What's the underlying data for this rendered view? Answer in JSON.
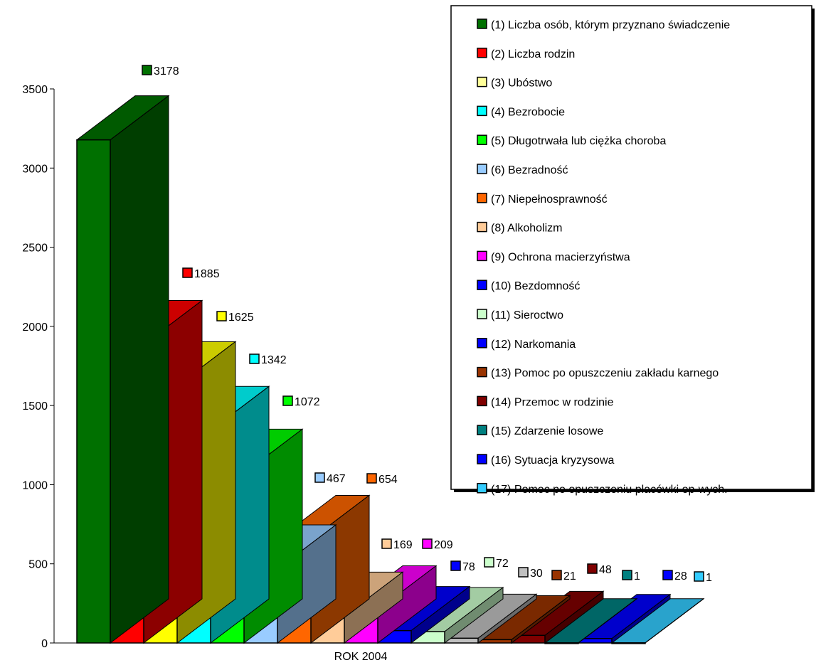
{
  "chart_data": {
    "type": "bar",
    "three_d": true,
    "title": "",
    "xlabel": "ROK 2004",
    "ylabel": "",
    "ylim": [
      0,
      3500
    ],
    "yticks": [
      "0",
      "500",
      "1000",
      "1500",
      "2000",
      "2500",
      "3000",
      "3500"
    ],
    "grid": false,
    "legend_position": "top-right",
    "series": [
      {
        "name": "(1) Liczba osób, którym przyznano świadczenie",
        "value": 3178,
        "label": "3178",
        "color": "#007000"
      },
      {
        "name": "(2) Liczba rodzin",
        "value": 1885,
        "label": "1885",
        "color": "#ff0000"
      },
      {
        "name": "(3) Ubóstwo",
        "value": 1625,
        "label": "1625",
        "color": "#ffff00"
      },
      {
        "name": "(4) Bezrobocie",
        "value": 1342,
        "label": "1342",
        "color": "#00ffff"
      },
      {
        "name": "(5) Długotrwała lub ciężka choroba",
        "value": 1072,
        "label": "1072",
        "color": "#00ff00"
      },
      {
        "name": "(6) Bezradność",
        "value": 467,
        "label": "467",
        "color": "#99ccff"
      },
      {
        "name": "(7) Niepełnosprawność",
        "value": 654,
        "label": "654",
        "color": "#ff6600"
      },
      {
        "name": "(8) Alkoholizm",
        "value": 169,
        "label": "169",
        "color": "#ffcc99"
      },
      {
        "name": "(9) Ochrona macierzyństwa",
        "value": 209,
        "label": "209",
        "color": "#ff00ff"
      },
      {
        "name": "(10) Bezdomność",
        "value": 78,
        "label": "78",
        "color": "#0000ff"
      },
      {
        "name": "(11) Sieroctwo",
        "value": 72,
        "label": "72",
        "color": "#ccffcc"
      },
      {
        "name": "",
        "value": 30,
        "label": "30",
        "color": "#c0c0c0"
      },
      {
        "name": "(12) Narkomania",
        "value": 21,
        "label": "21",
        "color": "#993300"
      },
      {
        "name": "(14) Przemoc w rodzinie",
        "value": 48,
        "label": "48",
        "color": "#800000"
      },
      {
        "name": "(15) Zdarzenie losowe",
        "value": 1,
        "label": "1",
        "color": "#008080"
      },
      {
        "name": "(16) Sytuacja kryzysowa",
        "value": 28,
        "label": "28",
        "color": "#0000ff"
      },
      {
        "name": "(17) Pomoc po opuszczeniu placówki op-wych.",
        "value": 1,
        "label": "1",
        "color": "#33ccff"
      }
    ],
    "legend": [
      {
        "label": "(1) Liczba osób, którym przyznano świadczenie",
        "color": "#007000"
      },
      {
        "label": "(2) Liczba rodzin",
        "color": "#ff0000"
      },
      {
        "label": "(3) Ubóstwo",
        "color": "#ffff99"
      },
      {
        "label": "(4) Bezrobocie",
        "color": "#00ffff"
      },
      {
        "label": "(5) Długotrwała lub ciężka choroba",
        "color": "#00ff00"
      },
      {
        "label": "(6) Bezradność",
        "color": "#99ccff"
      },
      {
        "label": "(7) Niepełnosprawność",
        "color": "#ff6600"
      },
      {
        "label": "(8) Alkoholizm",
        "color": "#ffcc99"
      },
      {
        "label": "(9) Ochrona macierzyństwa",
        "color": "#ff00ff"
      },
      {
        "label": "(10) Bezdomność",
        "color": "#0000ff"
      },
      {
        "label": "(11) Sieroctwo",
        "color": "#ccffcc"
      },
      {
        "label": "(12) Narkomania",
        "color": "#0000ff"
      },
      {
        "label": "(13) Pomoc po opuszczeniu zakładu karnego",
        "color": "#993300"
      },
      {
        "label": "(14) Przemoc w rodzinie",
        "color": "#800000"
      },
      {
        "label": "(15) Zdarzenie losowe",
        "color": "#008080"
      },
      {
        "label": "(16) Sytuacja kryzysowa",
        "color": "#0000ff"
      },
      {
        "label": "(17) Pomoc po opuszczeniu placówki op-wych.",
        "color": "#33ccff"
      }
    ]
  }
}
